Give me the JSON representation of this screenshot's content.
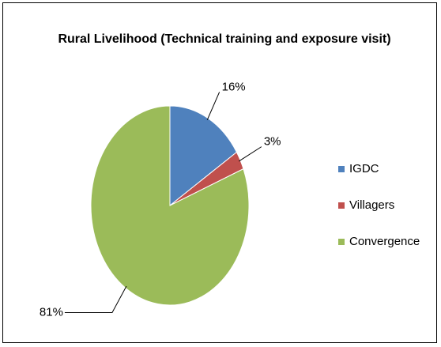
{
  "chart_data": {
    "type": "pie",
    "title": "Rural Livelihood (Technical training and exposure visit)",
    "categories": [
      "IGDC",
      "Villagers",
      "Convergence"
    ],
    "values": [
      16,
      3,
      81
    ],
    "value_labels": [
      "16%",
      "3%",
      "81%"
    ],
    "colors": [
      "#4f81bd",
      "#c0504d",
      "#9bbb59"
    ],
    "legend": "right"
  }
}
